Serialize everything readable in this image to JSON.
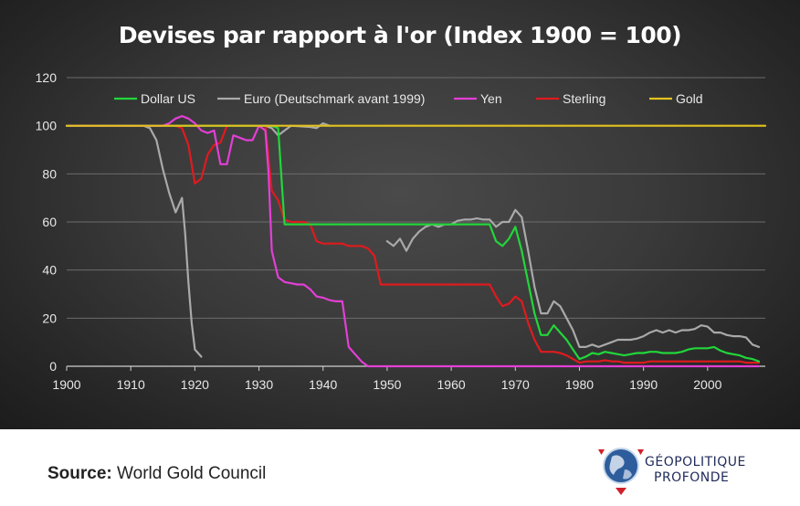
{
  "title": "Devises par rapport à l'or (Index 1900 = 100)",
  "source_label": "Source:",
  "source_value": "World Gold Council",
  "logo": {
    "line1": "GÉOPOLITIQUE",
    "line2": "PROFONDE"
  },
  "chart_data": {
    "type": "line",
    "title": "Devises par rapport à l'or (Index 1900 = 100)",
    "xlim": [
      1900,
      2009
    ],
    "ylim": [
      0,
      120
    ],
    "xticks": [
      1900,
      1910,
      1920,
      1930,
      1940,
      1950,
      1960,
      1970,
      1980,
      1990,
      2000
    ],
    "yticks": [
      0,
      20,
      40,
      60,
      80,
      100,
      120
    ],
    "grid": "horizontal",
    "legend_position": "top",
    "series": [
      {
        "name": "Dollar US",
        "color": "#22d63a",
        "points": [
          [
            1900,
            100
          ],
          [
            1932,
            100
          ],
          [
            1933,
            99
          ],
          [
            1934,
            59
          ],
          [
            1966,
            59
          ],
          [
            1967,
            52
          ],
          [
            1968,
            50
          ],
          [
            1969,
            53
          ],
          [
            1970,
            58
          ],
          [
            1971,
            48
          ],
          [
            1972,
            35
          ],
          [
            1973,
            22
          ],
          [
            1974,
            13
          ],
          [
            1975,
            13
          ],
          [
            1976,
            17
          ],
          [
            1977,
            14
          ],
          [
            1978,
            11
          ],
          [
            1979,
            7
          ],
          [
            1980,
            3
          ],
          [
            1981,
            4
          ],
          [
            1982,
            5.5
          ],
          [
            1983,
            5
          ],
          [
            1984,
            6
          ],
          [
            1985,
            5.5
          ],
          [
            1986,
            5
          ],
          [
            1987,
            4.5
          ],
          [
            1988,
            5
          ],
          [
            1989,
            5.5
          ],
          [
            1990,
            5.5
          ],
          [
            1991,
            6
          ],
          [
            1992,
            6
          ],
          [
            1993,
            5.5
          ],
          [
            1994,
            5.5
          ],
          [
            1995,
            5.5
          ],
          [
            1996,
            6
          ],
          [
            1997,
            7
          ],
          [
            1998,
            7.5
          ],
          [
            1999,
            7.5
          ],
          [
            2000,
            7.5
          ],
          [
            2001,
            8
          ],
          [
            2002,
            6.5
          ],
          [
            2003,
            5.5
          ],
          [
            2004,
            5
          ],
          [
            2005,
            4.5
          ],
          [
            2006,
            3.5
          ],
          [
            2007,
            3
          ],
          [
            2008,
            2
          ]
        ]
      },
      {
        "name": "Euro (Deutschmark avant 1999)",
        "color": "#a9a9a9",
        "segments": [
          [
            [
              1900,
              100
            ],
            [
              1912,
              100
            ],
            [
              1913,
              99
            ],
            [
              1914,
              94
            ],
            [
              1915,
              82
            ],
            [
              1916,
              72
            ],
            [
              1917,
              64
            ],
            [
              1918,
              70
            ],
            [
              1918.5,
              55
            ],
            [
              1919,
              35
            ],
            [
              1919.5,
              18
            ],
            [
              1920,
              7
            ],
            [
              1921,
              4
            ]
          ],
          [
            [
              1931,
              100
            ],
            [
              1932,
              99
            ],
            [
              1933,
              96
            ],
            [
              1934,
              98
            ],
            [
              1935,
              100
            ],
            [
              1938,
              99.5
            ],
            [
              1939,
              99
            ],
            [
              1940,
              101
            ],
            [
              1941,
              100
            ]
          ],
          [
            [
              1950,
              52
            ],
            [
              1951,
              50
            ],
            [
              1952,
              53
            ],
            [
              1953,
              48
            ],
            [
              1954,
              53
            ],
            [
              1955,
              56
            ],
            [
              1956,
              58
            ],
            [
              1957,
              59
            ],
            [
              1958,
              58
            ],
            [
              1959,
              59
            ],
            [
              1960,
              59
            ],
            [
              1961,
              60.5
            ],
            [
              1962,
              61
            ],
            [
              1963,
              61
            ],
            [
              1964,
              61.5
            ],
            [
              1965,
              61
            ],
            [
              1966,
              61
            ],
            [
              1967,
              58
            ],
            [
              1968,
              60
            ],
            [
              1969,
              60
            ],
            [
              1970,
              65
            ],
            [
              1971,
              62
            ],
            [
              1972,
              48
            ],
            [
              1973,
              33
            ],
            [
              1974,
              22
            ],
            [
              1975,
              22
            ],
            [
              1976,
              27
            ],
            [
              1977,
              25
            ],
            [
              1978,
              20
            ],
            [
              1979,
              15
            ],
            [
              1980,
              8
            ],
            [
              1981,
              8
            ],
            [
              1982,
              9
            ],
            [
              1983,
              8
            ],
            [
              1984,
              9
            ],
            [
              1985,
              10
            ],
            [
              1986,
              11
            ],
            [
              1987,
              11
            ],
            [
              1988,
              11
            ],
            [
              1989,
              11.5
            ],
            [
              1990,
              12.5
            ],
            [
              1991,
              14
            ],
            [
              1992,
              15
            ],
            [
              1993,
              14
            ],
            [
              1994,
              15
            ],
            [
              1995,
              14
            ],
            [
              1996,
              15
            ],
            [
              1997,
              15
            ],
            [
              1998,
              15.5
            ],
            [
              1999,
              17
            ],
            [
              2000,
              16.5
            ],
            [
              2001,
              14
            ],
            [
              2002,
              14
            ],
            [
              2003,
              13
            ],
            [
              2004,
              12.5
            ],
            [
              2005,
              12.5
            ],
            [
              2006,
              12
            ],
            [
              2007,
              9
            ],
            [
              2008,
              8
            ]
          ]
        ]
      },
      {
        "name": "Yen",
        "color": "#e33fd6",
        "points": [
          [
            1900,
            100
          ],
          [
            1915,
            100
          ],
          [
            1916,
            101
          ],
          [
            1917,
            103
          ],
          [
            1918,
            104
          ],
          [
            1919,
            103
          ],
          [
            1920,
            101
          ],
          [
            1921,
            98
          ],
          [
            1922,
            97
          ],
          [
            1923,
            98
          ],
          [
            1924,
            84
          ],
          [
            1925,
            84
          ],
          [
            1926,
            96
          ],
          [
            1927,
            95
          ],
          [
            1928,
            94
          ],
          [
            1929,
            94
          ],
          [
            1930,
            100
          ],
          [
            1931,
            98
          ],
          [
            1931.5,
            80
          ],
          [
            1932,
            48
          ],
          [
            1933,
            37
          ],
          [
            1934,
            35
          ],
          [
            1935,
            34.5
          ],
          [
            1936,
            34
          ],
          [
            1937,
            34
          ],
          [
            1938,
            32
          ],
          [
            1939,
            29
          ],
          [
            1940,
            28.5
          ],
          [
            1941,
            27.5
          ],
          [
            1942,
            27
          ],
          [
            1943,
            27
          ],
          [
            1944,
            8
          ],
          [
            1945,
            5
          ],
          [
            1946,
            2
          ],
          [
            1947,
            0
          ],
          [
            2008,
            0
          ]
        ]
      },
      {
        "name": "Sterling",
        "color": "#e01a1e",
        "points": [
          [
            1900,
            100
          ],
          [
            1917,
            100
          ],
          [
            1918,
            99
          ],
          [
            1919,
            92
          ],
          [
            1920,
            76
          ],
          [
            1921,
            78
          ],
          [
            1922,
            88
          ],
          [
            1923,
            92
          ],
          [
            1924,
            93
          ],
          [
            1925,
            100
          ],
          [
            1931,
            100
          ],
          [
            1932,
            73
          ],
          [
            1933,
            69
          ],
          [
            1934,
            61
          ],
          [
            1935,
            60
          ],
          [
            1936,
            60
          ],
          [
            1937,
            60
          ],
          [
            1938,
            59
          ],
          [
            1939,
            52
          ],
          [
            1940,
            51
          ],
          [
            1941,
            51
          ],
          [
            1942,
            51
          ],
          [
            1943,
            51
          ],
          [
            1944,
            50
          ],
          [
            1945,
            50
          ],
          [
            1946,
            50
          ],
          [
            1947,
            49
          ],
          [
            1948,
            46
          ],
          [
            1949,
            34
          ],
          [
            1950,
            34
          ],
          [
            1966,
            34
          ],
          [
            1967,
            29
          ],
          [
            1968,
            25
          ],
          [
            1969,
            26
          ],
          [
            1970,
            29
          ],
          [
            1971,
            27
          ],
          [
            1972,
            18
          ],
          [
            1973,
            11
          ],
          [
            1974,
            6
          ],
          [
            1975,
            6
          ],
          [
            1976,
            6
          ],
          [
            1977,
            5.5
          ],
          [
            1978,
            4.5
          ],
          [
            1979,
            3
          ],
          [
            1980,
            1.5
          ],
          [
            1981,
            2
          ],
          [
            1982,
            2
          ],
          [
            1983,
            2
          ],
          [
            1984,
            2.5
          ],
          [
            1985,
            2
          ],
          [
            1986,
            2
          ],
          [
            1987,
            1.5
          ],
          [
            1988,
            1.5
          ],
          [
            1989,
            1.5
          ],
          [
            1990,
            1.5
          ],
          [
            1991,
            2
          ],
          [
            1992,
            2
          ],
          [
            1993,
            2
          ],
          [
            1994,
            2
          ],
          [
            1995,
            2
          ],
          [
            1996,
            2
          ],
          [
            1997,
            2
          ],
          [
            1998,
            2
          ],
          [
            1999,
            2
          ],
          [
            2000,
            2
          ],
          [
            2001,
            2
          ],
          [
            2002,
            2
          ],
          [
            2003,
            2
          ],
          [
            2004,
            2
          ],
          [
            2005,
            2
          ],
          [
            2006,
            1.5
          ],
          [
            2007,
            1.5
          ],
          [
            2008,
            1.5
          ]
        ]
      },
      {
        "name": "Gold",
        "color": "#e3c21e",
        "points": [
          [
            1900,
            100
          ],
          [
            2009,
            100
          ]
        ]
      }
    ]
  }
}
